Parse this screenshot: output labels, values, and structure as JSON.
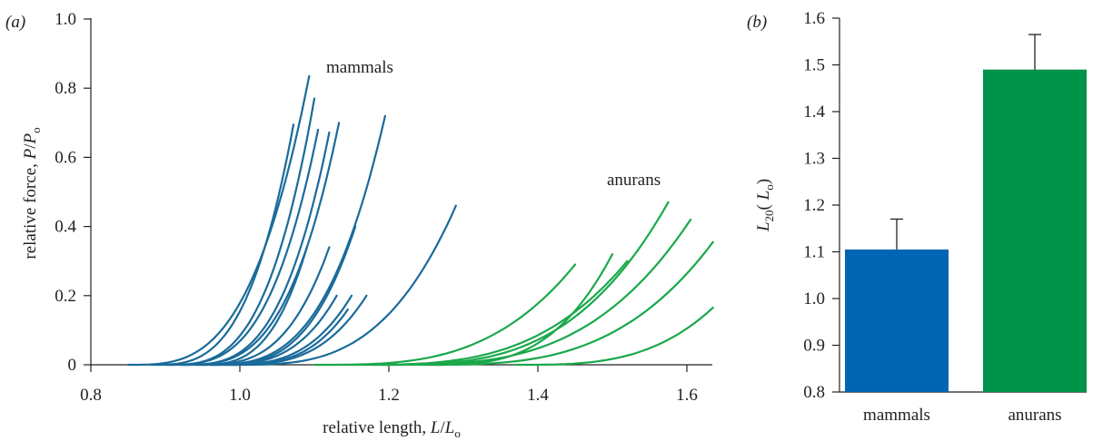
{
  "colors": {
    "mammals": "#1a6b9a",
    "anurans": "#1aa84a",
    "bar_mammals": "#0066b3",
    "bar_anurans": "#00934a",
    "axis": "#222222"
  },
  "chart_data": [
    {
      "type": "line",
      "panel_label": "(a)",
      "xlabel": {
        "main": "relative length, ",
        "var": "L",
        "slash": "/",
        "sub_var": "L",
        "sub": "o"
      },
      "ylabel": {
        "main": "relative force, ",
        "var": "P",
        "slash": "/",
        "sub_var": "P",
        "sub": "o"
      },
      "xlim": [
        0.8,
        1.63
      ],
      "ylim": [
        -0.02,
        1.0
      ],
      "xticks": [
        "0.8",
        "1.0",
        "1.2",
        "1.4",
        "1.6"
      ],
      "yticks": [
        "0",
        "0.2",
        "0.4",
        "0.6",
        "0.8",
        "1.0"
      ],
      "annotations": [
        "mammals",
        "anurans"
      ],
      "grid": false,
      "series": [
        {
          "group": "mammals",
          "curves": [
            {
              "x0": 0.85,
              "x1": 1.093,
              "ymax": 0.835
            },
            {
              "x0": 0.88,
              "x1": 1.072,
              "ymax": 0.695
            },
            {
              "x0": 0.9,
              "x1": 1.1,
              "ymax": 0.77
            },
            {
              "x0": 0.9,
              "x1": 1.105,
              "ymax": 0.68
            },
            {
              "x0": 0.92,
              "x1": 1.12,
              "ymax": 0.672
            },
            {
              "x0": 0.92,
              "x1": 1.133,
              "ymax": 0.7
            },
            {
              "x0": 0.95,
              "x1": 1.195,
              "ymax": 0.72
            },
            {
              "x0": 0.94,
              "x1": 1.09,
              "ymax": 0.34
            },
            {
              "x0": 0.94,
              "x1": 1.12,
              "ymax": 0.34
            },
            {
              "x0": 0.96,
              "x1": 1.155,
              "ymax": 0.4
            },
            {
              "x0": 0.96,
              "x1": 1.13,
              "ymax": 0.2
            },
            {
              "x0": 0.97,
              "x1": 1.15,
              "ymax": 0.2
            },
            {
              "x0": 0.98,
              "x1": 1.17,
              "ymax": 0.2
            },
            {
              "x0": 0.98,
              "x1": 1.145,
              "ymax": 0.16
            },
            {
              "x0": 0.99,
              "x1": 1.29,
              "ymax": 0.46
            }
          ]
        },
        {
          "group": "anurans",
          "curves": [
            {
              "x0": 1.1,
              "x1": 1.45,
              "ymax": 0.29
            },
            {
              "x0": 1.15,
              "x1": 1.52,
              "ymax": 0.3
            },
            {
              "x0": 1.18,
              "x1": 1.575,
              "ymax": 0.47
            },
            {
              "x0": 1.19,
              "x1": 1.605,
              "ymax": 0.42
            },
            {
              "x0": 1.24,
              "x1": 1.635,
              "ymax": 0.355
            },
            {
              "x0": 1.25,
              "x1": 1.5,
              "ymax": 0.32
            },
            {
              "x0": 1.37,
              "x1": 1.635,
              "ymax": 0.165
            }
          ]
        }
      ]
    },
    {
      "type": "bar",
      "panel_label": "(b)",
      "categories": [
        "mammals",
        "anurans"
      ],
      "values": [
        1.105,
        1.49
      ],
      "errors": [
        0.065,
        0.075
      ],
      "ylabel": {
        "var": "L",
        "sub": "20",
        "open": "( ",
        "inner_var": "L",
        "inner_sub": "o",
        "close": ")"
      },
      "ylim": [
        0.8,
        1.6
      ],
      "yticks": [
        "0.8",
        "0.9",
        "1.0",
        "1.1",
        "1.2",
        "1.3",
        "1.4",
        "1.5",
        "1.6"
      ],
      "grid": false
    }
  ]
}
